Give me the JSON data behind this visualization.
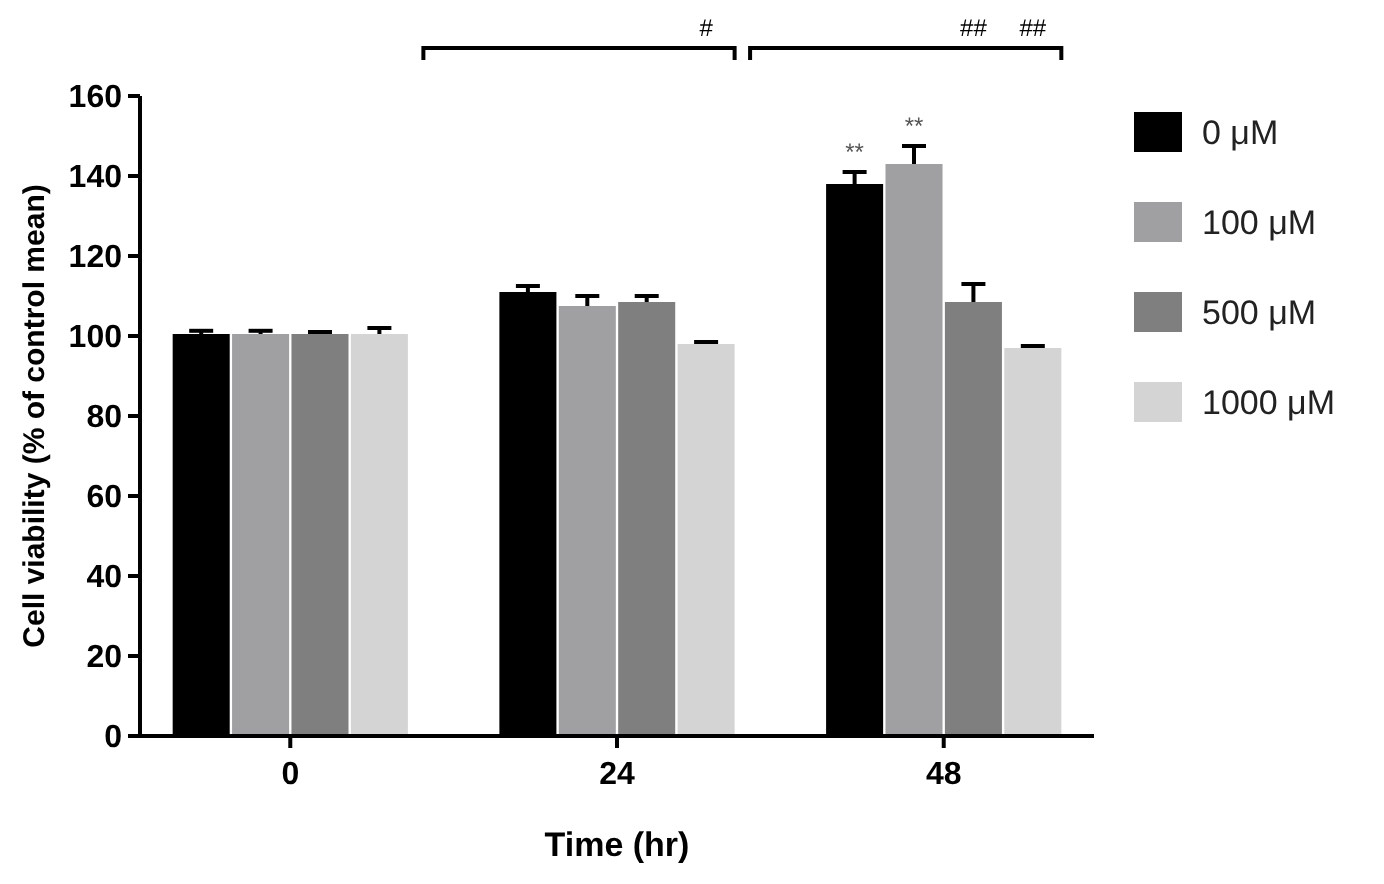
{
  "chart_data": {
    "type": "bar",
    "xlabel": "Time (hr)",
    "ylabel": "Cell viability (% of control mean)",
    "categories": [
      "0",
      "24",
      "48"
    ],
    "series": [
      {
        "name": "0 μM",
        "color": "#000000",
        "values": [
          100.5,
          111,
          138
        ],
        "errors": [
          0.8,
          1.5,
          3
        ]
      },
      {
        "name": "100 μM",
        "color": "#a0a0a2",
        "values": [
          100.5,
          107.5,
          143
        ],
        "errors": [
          0.8,
          2.5,
          4.5
        ]
      },
      {
        "name": "500 μM",
        "color": "#7f7f7f",
        "values": [
          100.5,
          108.5,
          108.5
        ],
        "errors": [
          0.5,
          1.5,
          4.5
        ]
      },
      {
        "name": "1000 μM",
        "color": "#d4d4d4",
        "values": [
          100.5,
          98,
          97
        ],
        "errors": [
          1.5,
          0.5,
          0.5
        ]
      }
    ],
    "ylim": [
      0,
      160
    ],
    "yticks": [
      0,
      20,
      40,
      60,
      80,
      100,
      120,
      140,
      160
    ],
    "grid": false,
    "legend": "right",
    "annotations": [
      "#",
      "##",
      "##",
      "**",
      "**"
    ]
  }
}
